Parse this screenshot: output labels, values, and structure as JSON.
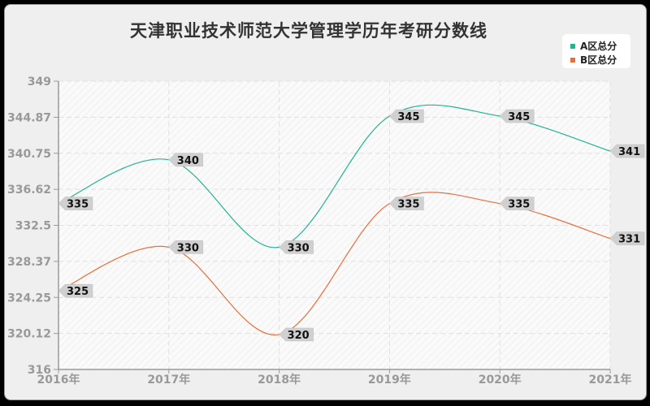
{
  "title": "天津职业技术师范大学管理学历年考研分数线",
  "legend": [
    {
      "label": "A区总分",
      "color": "#1fb58f"
    },
    {
      "label": "B区总分",
      "color": "#e8703c"
    }
  ],
  "chart_data": {
    "type": "line",
    "title": "天津职业技术师范大学管理学历年考研分数线",
    "categories": [
      "2016年",
      "2017年",
      "2018年",
      "2019年",
      "2020年",
      "2021年"
    ],
    "series": [
      {
        "name": "A区总分",
        "values": [
          335,
          340,
          330,
          345,
          345,
          341
        ],
        "color": "#1fb58f"
      },
      {
        "name": "B区总分",
        "values": [
          325,
          330,
          320,
          335,
          335,
          331
        ],
        "color": "#e8703c"
      }
    ],
    "yticks": [
      "349",
      "344.87",
      "340.75",
      "336.62",
      "332.5",
      "328.37",
      "324.25",
      "320.12",
      "316"
    ],
    "ylim": [
      316,
      349
    ],
    "xlabel": "",
    "ylabel": "",
    "grid": true,
    "legend_position": "top-right",
    "smooth": true
  }
}
